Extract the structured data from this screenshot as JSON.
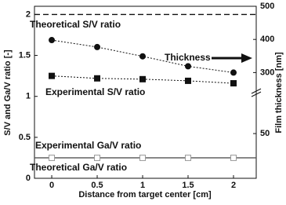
{
  "chart_data": {
    "type": "line",
    "x": [
      0,
      0.5,
      1,
      1.5,
      2
    ],
    "xlabel": "Distance from target center [cm]",
    "ylabel": "S/V and Ga/V ratio [-]",
    "y2label": "Film thickness [nm]",
    "xlim": [
      -0.19,
      2.25
    ],
    "xticks": [
      0,
      0.5,
      1,
      1.5,
      2
    ],
    "ylim": [
      0,
      2.1
    ],
    "yticks": [
      0,
      0.5,
      1,
      1.5,
      2
    ],
    "y2lim": [
      0,
      500
    ],
    "y2_break": [
      100,
      250
    ],
    "y2ticks": [
      50,
      300,
      400,
      500
    ],
    "series": [
      {
        "name": "Thickness",
        "color": "#111111",
        "marker": "filled-circle",
        "axis": "y2",
        "values": [
          398,
          377,
          349,
          319,
          300
        ]
      },
      {
        "name": "Experimental S/V ratio",
        "color": "#111111",
        "marker": "filled-square",
        "values": [
          1.25,
          1.22,
          1.21,
          1.19,
          1.16
        ]
      },
      {
        "name": "Experimental Ga/V ratio",
        "color": "#999999",
        "marker": "open-square",
        "values": [
          0.25,
          0.25,
          0.25,
          0.25,
          0.25
        ]
      }
    ],
    "reference_lines": [
      {
        "name": "Theoretical S/V ratio",
        "value": 2,
        "color": "#111111",
        "style": "dashed"
      },
      {
        "name": "Theoretical Ga/V ratio",
        "value": 0.25,
        "color": "#555555",
        "style": "solid"
      }
    ]
  }
}
